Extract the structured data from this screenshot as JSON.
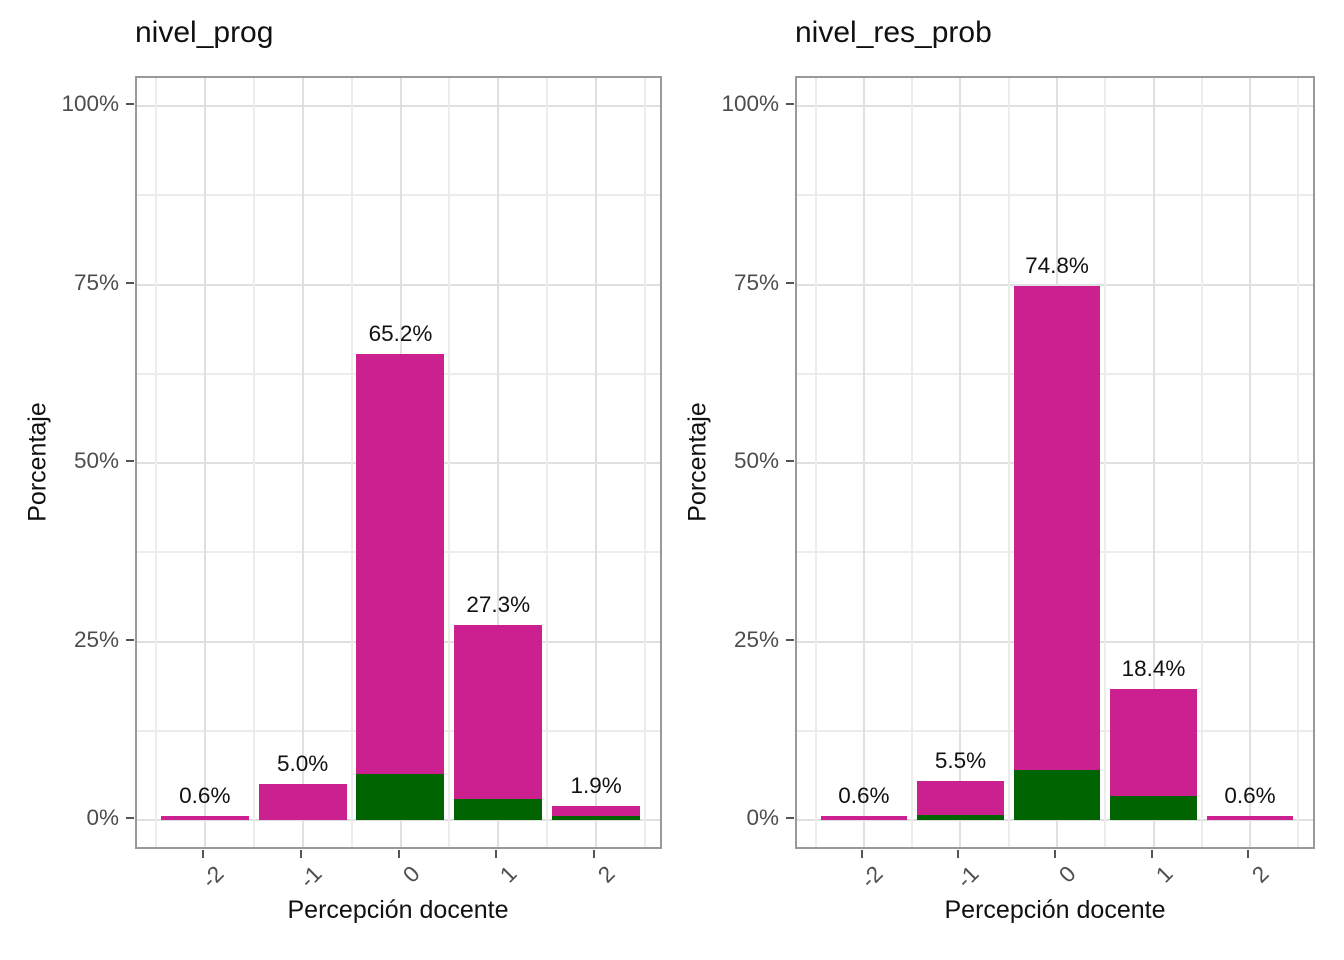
{
  "figure": {
    "background": "#ffffff",
    "colors": {
      "magenta": "#cc2090",
      "green": "#006400",
      "grid_major": "#e0e0e0",
      "grid_minor": "#ececec",
      "panel_border": "#999999",
      "axis_text": "#4d4d4d",
      "title_text": "#111111",
      "bar_label_text": "#111111"
    }
  },
  "chart_data": [
    {
      "type": "bar",
      "title": "nivel_prog",
      "xlabel": "Percepción docente",
      "ylabel": "Porcentaje",
      "ylim": [
        0,
        100
      ],
      "grid": true,
      "legend": "none",
      "categories": [
        "-2",
        "-1",
        "0",
        "1",
        "2"
      ],
      "x_tick_labels": [
        "-2",
        "-1",
        "0",
        "1",
        "2"
      ],
      "y_tick_labels": [
        "0%",
        "25%",
        "50%",
        "75%",
        "100%"
      ],
      "y_tick_values": [
        0,
        25,
        50,
        75,
        100
      ],
      "series": [
        {
          "name": "green",
          "color": "#006400",
          "values": [
            0,
            0,
            6.4,
            2.9,
            0.6
          ]
        },
        {
          "name": "magenta",
          "color": "#cc2090",
          "values": [
            0.6,
            5.0,
            58.8,
            24.4,
            1.3
          ]
        }
      ],
      "totals": [
        0.6,
        5.0,
        65.2,
        27.3,
        1.9
      ],
      "bar_labels": [
        "0.6%",
        "5.0%",
        "65.2%",
        "27.3%",
        "1.9%"
      ]
    },
    {
      "type": "bar",
      "title": "nivel_res_prob",
      "xlabel": "Percepción docente",
      "ylabel": "Porcentaje",
      "ylim": [
        0,
        100
      ],
      "grid": true,
      "legend": "none",
      "categories": [
        "-2",
        "-1",
        "0",
        "1",
        "2"
      ],
      "x_tick_labels": [
        "-2",
        "-1",
        "0",
        "1",
        "2"
      ],
      "y_tick_labels": [
        "0%",
        "25%",
        "50%",
        "75%",
        "100%"
      ],
      "y_tick_values": [
        0,
        25,
        50,
        75,
        100
      ],
      "series": [
        {
          "name": "green",
          "color": "#006400",
          "values": [
            0,
            0.7,
            7.0,
            3.3,
            0
          ]
        },
        {
          "name": "magenta",
          "color": "#cc2090",
          "values": [
            0.6,
            4.8,
            67.8,
            15.1,
            0.6
          ]
        }
      ],
      "totals": [
        0.6,
        5.5,
        74.8,
        18.4,
        0.6
      ],
      "bar_labels": [
        "0.6%",
        "5.5%",
        "74.8%",
        "18.4%",
        "0.6%"
      ]
    }
  ]
}
